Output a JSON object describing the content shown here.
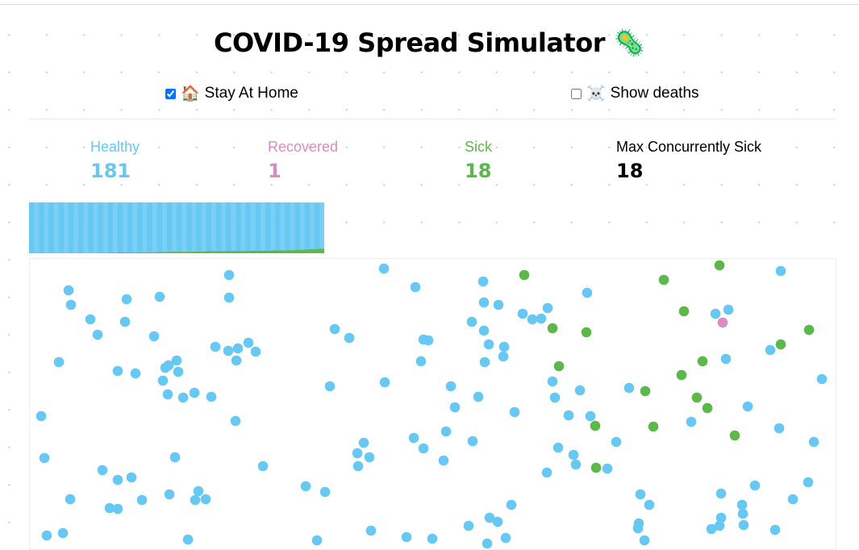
{
  "title": "COVID-19 Spread Simulator",
  "title_icon": "microbe-icon",
  "controls": {
    "stay_at_home": {
      "label": "Stay At Home",
      "icon": "house-icon",
      "checked": true
    },
    "show_deaths": {
      "label": "Show deaths",
      "icon": "skull-crossbones-icon",
      "checked": false
    }
  },
  "stats": [
    {
      "label": "Healthy",
      "value": "181",
      "color": "#67c8f3"
    },
    {
      "label": "Recovered",
      "value": "1",
      "color": "#d98cc0"
    },
    {
      "label": "Sick",
      "value": "18",
      "color": "#5cb84a"
    },
    {
      "label": "Max Concurrently Sick",
      "value": "18",
      "color": "#000000"
    }
  ],
  "chart_data": {
    "type": "area",
    "stacked": true,
    "total": 200,
    "series": [
      {
        "key": "sick",
        "color": "#5cb84a",
        "values": [
          1,
          1,
          1,
          1,
          1,
          1,
          1,
          1,
          1,
          1,
          1,
          1,
          1,
          1,
          1,
          2,
          2,
          2,
          3,
          3,
          3,
          3,
          4,
          4,
          4,
          4,
          5,
          5,
          5,
          6,
          6,
          6,
          6,
          7,
          7,
          7,
          8,
          8,
          8,
          8,
          8,
          9,
          9,
          9,
          9,
          10,
          10,
          10,
          10,
          11,
          11,
          11,
          12,
          12,
          13,
          14,
          15,
          16,
          17,
          18
        ]
      },
      {
        "key": "recovered",
        "color": "#d98cc0",
        "values": [
          0,
          0,
          0,
          0,
          0,
          0,
          0,
          0,
          0,
          0,
          0,
          0,
          0,
          0,
          0,
          0,
          0,
          0,
          0,
          0,
          0,
          0,
          0,
          0,
          0,
          0,
          0,
          0,
          0,
          0,
          0,
          0,
          0,
          0,
          0,
          0,
          0,
          0,
          0,
          0,
          0,
          0,
          0,
          0,
          0,
          0,
          0,
          0,
          0,
          0,
          0,
          0,
          1,
          1,
          1,
          1,
          1,
          1,
          1,
          1
        ]
      },
      {
        "key": "healthy",
        "color": "#67c8f3"
      }
    ]
  },
  "population_colors": {
    "healthy": "#67c8f3",
    "sick": "#5cb84a",
    "recovered": "#d98cc0"
  }
}
